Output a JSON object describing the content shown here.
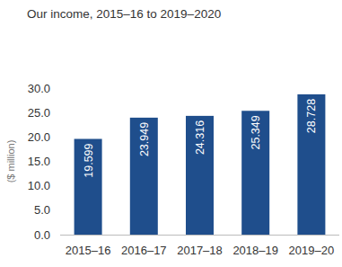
{
  "chart_data": {
    "type": "bar",
    "title": "Our income, 2015–16 to 2019–2020",
    "ylabel": "($ million)",
    "categories": [
      "2015–16",
      "2016–17",
      "2017–18",
      "2018–19",
      "2019–20"
    ],
    "values": [
      19.599,
      23.949,
      24.316,
      25.349,
      28.728
    ],
    "color": "#1f4e8c",
    "ylim": [
      0,
      30
    ],
    "yticks": [
      {
        "value": 0,
        "label": "0.0"
      },
      {
        "value": 5,
        "label": "5.0"
      },
      {
        "value": 10,
        "label": "10.0"
      },
      {
        "value": 15,
        "label": "15.0"
      },
      {
        "value": 20,
        "label": "20.0"
      },
      {
        "value": 25,
        "label": "25.0"
      },
      {
        "value": 30,
        "label": "30.0"
      }
    ],
    "grid": false,
    "data_labels": true
  }
}
